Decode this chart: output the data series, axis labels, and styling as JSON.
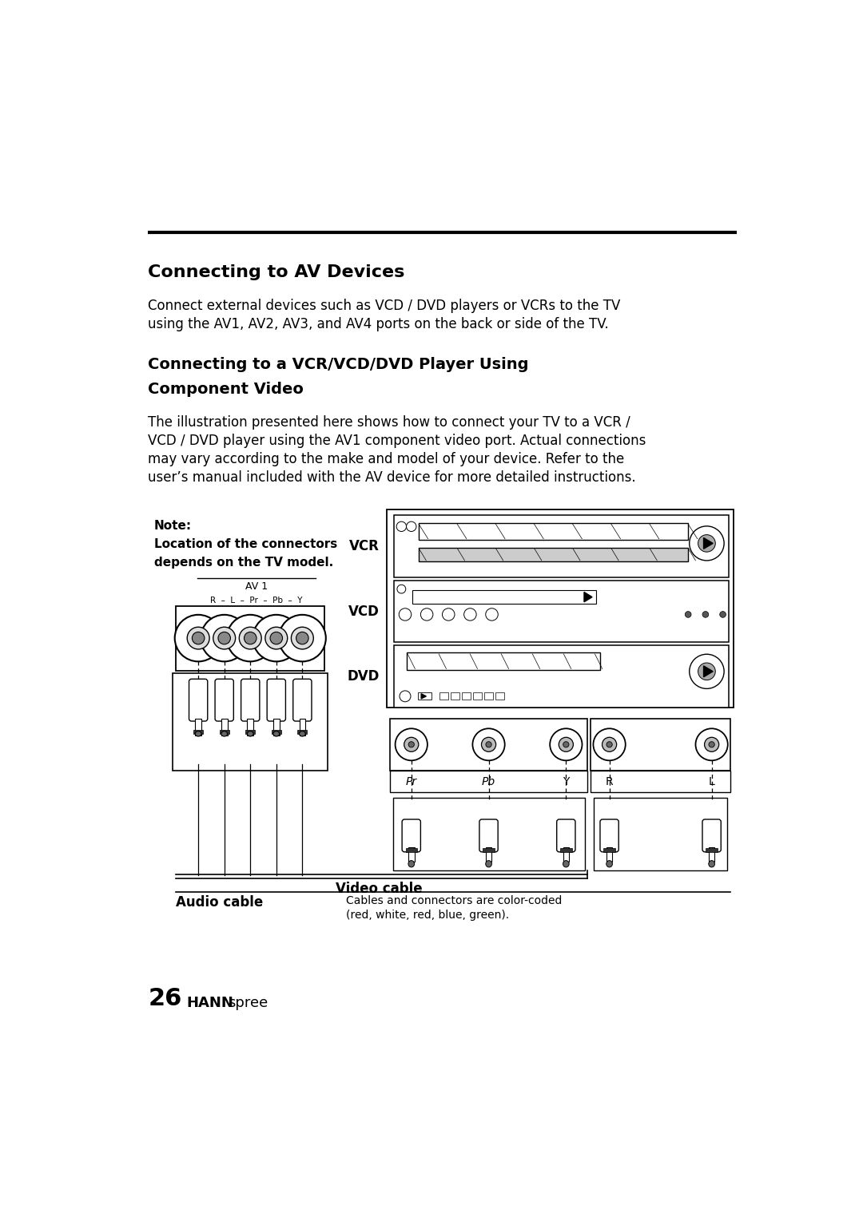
{
  "bg_color": "#ffffff",
  "text_color": "#000000",
  "page_width": 10.8,
  "page_height": 15.29,
  "section_title1": "Connecting to AV Devices",
  "para1_line1": "Connect external devices such as VCD / DVD players or VCRs to the TV",
  "para1_line2": "using the AV1, AV2, AV3, and AV4 ports on the back or side of the TV.",
  "section_title2_line1": "Connecting to a VCR/VCD/DVD Player Using",
  "section_title2_line2": "Component Video",
  "para2_line1": "The illustration presented here shows how to connect your TV to a VCR /",
  "para2_line2": "VCD / DVD player using the AV1 component video port. Actual connections",
  "para2_line3": "may vary according to the make and model of your device. Refer to the",
  "para2_line4": "user’s manual included with the AV device for more detailed instructions.",
  "note_bold": "Note:",
  "note_line2": "Location of the connectors",
  "note_line3": "depends on the TV model.",
  "av1_label": "AV 1",
  "port_row_label": "R  –  L  –  Pr  –  Pb  –  Y",
  "vcr_label": "VCR",
  "vcd_label": "VCD",
  "dvd_label": "DVD",
  "pr_label": "Pr",
  "pb_label": "Pb",
  "y_label": "Y",
  "r_label": "R",
  "l_label": "L",
  "video_cable_label": "Video cable",
  "audio_cable_label": "Audio cable",
  "color_note_line1": "Cables and connectors are color-coded",
  "color_note_line2": "(red, white, red, blue, green).",
  "page_num": "26",
  "brand_hann": "HANN",
  "brand_spree": "spree",
  "title1_fontsize": 16,
  "title2_fontsize": 14,
  "body_fontsize": 12,
  "note_fontsize": 11
}
